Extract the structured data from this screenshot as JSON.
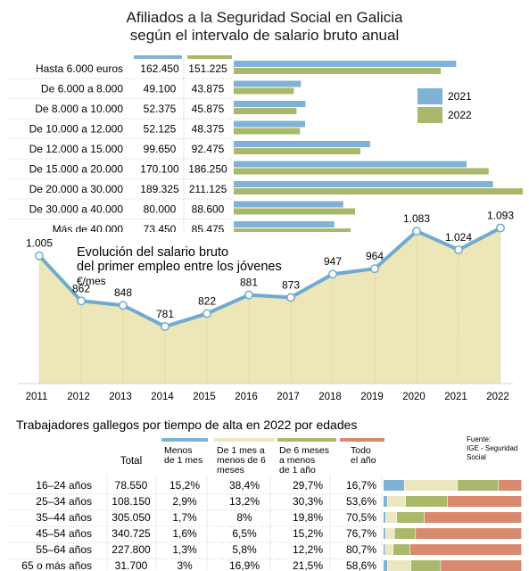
{
  "chart_data": [
    {
      "type": "bar",
      "title": "Afiliados a la Seguridad Social en Galicia",
      "subtitle": "según el intervalo de salario bruto anual",
      "categories": [
        "Hasta 6.000 euros",
        "De 6.000 a 8.000",
        "De 8.000 a 10.000",
        "De 10.000 a 12.000",
        "De 12.000 a 15.000",
        "De 15.000 a 20.000",
        "De 20.000 a 30.000",
        "De 30.000 a 40.000",
        "Más de 40.000"
      ],
      "labels_2021": [
        "162.450",
        "49.100",
        "52.375",
        "52.125",
        "99.650",
        "170.100",
        "189.325",
        "80.000",
        "73.450"
      ],
      "labels_2022": [
        "151.225",
        "43.875",
        "45.875",
        "48.375",
        "92.475",
        "186.250",
        "211.125",
        "88.600",
        "85.475"
      ],
      "series": [
        {
          "name": "2021",
          "values": [
            162450,
            49100,
            52375,
            52125,
            99650,
            170100,
            189325,
            80000,
            73450
          ],
          "color": "#7fb2d4"
        },
        {
          "name": "2022",
          "values": [
            151225,
            43875,
            45875,
            48375,
            92475,
            186250,
            211125,
            88600,
            85475
          ],
          "color": "#a9b86a"
        }
      ],
      "xlim": [
        0,
        211125
      ],
      "legend": "right"
    },
    {
      "type": "area",
      "title": "Evolución del salario bruto",
      "subtitle": "del primer empleo entre los jóvenes",
      "unit": "€/mes",
      "x": [
        "2011",
        "2012",
        "2013",
        "2014",
        "2015",
        "2016",
        "2017",
        "2018",
        "2019",
        "2020",
        "2021",
        "2022"
      ],
      "values": [
        1005,
        862,
        848,
        781,
        822,
        881,
        873,
        947,
        964,
        1083,
        1024,
        1093
      ],
      "labels": [
        "1.005",
        "862",
        "848",
        "781",
        "822",
        "881",
        "873",
        "947",
        "964",
        "1.083",
        "1.024",
        "1.093"
      ],
      "ylim": [
        600,
        1120
      ],
      "line_color": "#6faad0",
      "fill_color": "#ede6b8"
    },
    {
      "type": "table",
      "title": "Trabajadores gallegos por tiempo de alta en 2022 por edades",
      "headers": [
        "Total",
        "Menos de 1 mes",
        "De 1 mes a menos de 6 meses",
        "De 6 meses a menos de 1 año",
        "Todo el año"
      ],
      "header_colors": [
        "#7fb2d4",
        "#ebe8bf",
        "#a9b86a",
        "#d9896d"
      ],
      "source": "Fuente: IGE - Seguridad Social",
      "rows": [
        {
          "age": "16–24 años",
          "total": "78.550",
          "cells": [
            "15,2%",
            "38,4%",
            "29,7%",
            "16,7%"
          ],
          "values": [
            15.2,
            38.4,
            29.7,
            16.7
          ]
        },
        {
          "age": "25–34 años",
          "total": "108.150",
          "cells": [
            "2,9%",
            "13,2%",
            "30,3%",
            "53,6%"
          ],
          "values": [
            2.9,
            13.2,
            30.3,
            53.6
          ]
        },
        {
          "age": "35–44 años",
          "total": "305.050",
          "cells": [
            "1,7%",
            "8%",
            "19,8%",
            "70,5%"
          ],
          "values": [
            1.7,
            8,
            19.8,
            70.5
          ]
        },
        {
          "age": "45–54 años",
          "total": "340.725",
          "cells": [
            "1,6%",
            "6,5%",
            "15,2%",
            "76,7%"
          ],
          "values": [
            1.6,
            6.5,
            15.2,
            76.7
          ]
        },
        {
          "age": "55–64 años",
          "total": "227.800",
          "cells": [
            "1,3%",
            "5,8%",
            "12,2%",
            "80,7%"
          ],
          "values": [
            1.3,
            5.8,
            12.2,
            80.7
          ]
        },
        {
          "age": "65 o más años",
          "total": "31.700",
          "cells": [
            "3%",
            "16,9%",
            "21,5%",
            "58,6%"
          ],
          "values": [
            3,
            16.9,
            21.5,
            58.6
          ]
        }
      ]
    }
  ]
}
